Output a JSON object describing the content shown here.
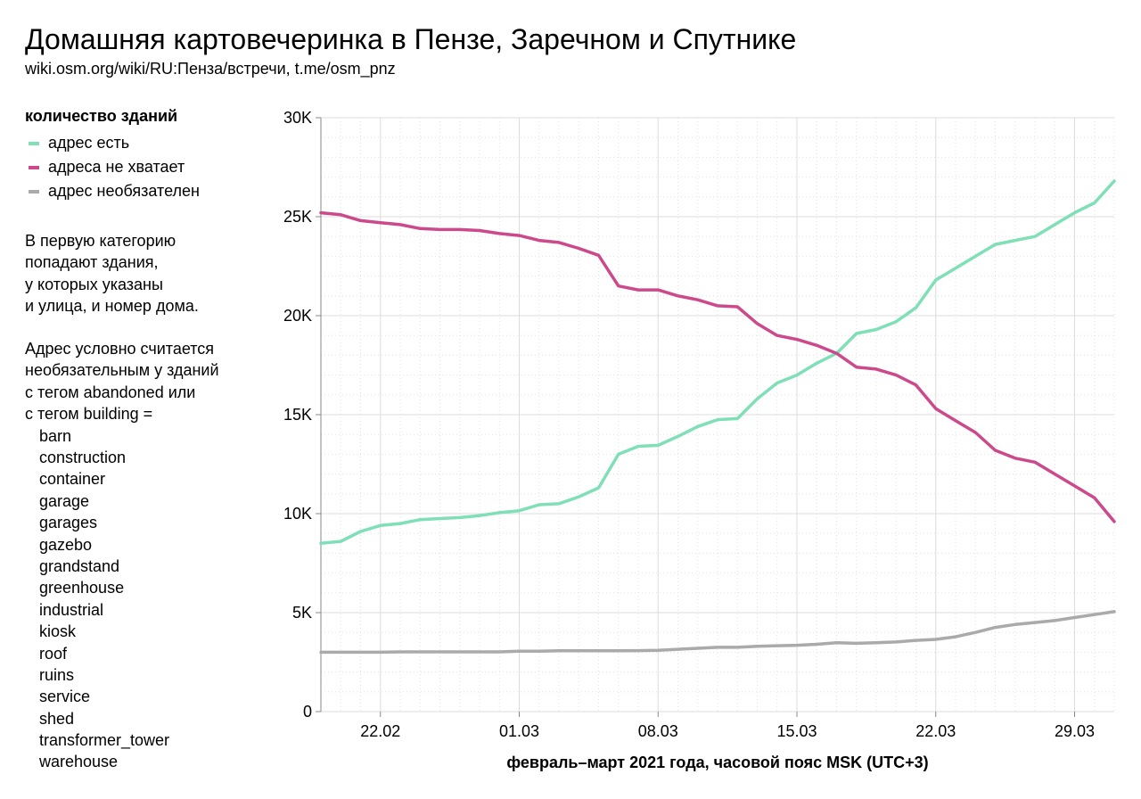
{
  "header": {
    "title": "Домашняя картовечеринка в Пензе, Заречном и Спутнике",
    "subtitle": "wiki.osm.org/wiki/RU:Пенза/встречи, t.me/osm_pnz"
  },
  "legend": {
    "title": "количество зданий",
    "items": [
      {
        "label": "адрес есть",
        "color": "#7fdfb7"
      },
      {
        "label": "адреса не хватает",
        "color": "#cc4a8b"
      },
      {
        "label": "адрес необязателен",
        "color": "#aaaaaa"
      }
    ]
  },
  "notes": {
    "para1": [
      "В первую категорию",
      "попадают здания,",
      "у которых указаны",
      "и улица, и номер дома."
    ],
    "para2": [
      "Адрес условно считается",
      "необязательным у зданий",
      "с тегом abandoned или",
      "с тегом building ="
    ],
    "tags": [
      "barn",
      "construction",
      "container",
      "garage",
      "garages",
      "gazebo",
      "grandstand",
      "greenhouse",
      "industrial",
      "kiosk",
      "roof",
      "ruins",
      "service",
      "shed",
      "transformer_tower",
      "warehouse"
    ]
  },
  "chart_data": {
    "type": "line",
    "xlabel": "февраль–март 2021 года, часовой пояс MSK (UTC+3)",
    "x_ticks": [
      "22.02",
      "01.03",
      "08.03",
      "15.03",
      "22.03",
      "29.03"
    ],
    "y_ticks": [
      "0",
      "5K",
      "10K",
      "15K",
      "20K",
      "25K",
      "30K"
    ],
    "ylim": [
      0,
      30000
    ],
    "xlim": [
      "19.02",
      "31.03"
    ],
    "grid": true,
    "series": [
      {
        "name": "адрес есть",
        "color": "#7fdfb7",
        "x": [
          "19.02",
          "20.02",
          "21.02",
          "22.02",
          "23.02",
          "24.02",
          "25.02",
          "26.02",
          "27.02",
          "28.02",
          "01.03",
          "02.03",
          "03.03",
          "04.03",
          "05.03",
          "06.03",
          "07.03",
          "08.03",
          "09.03",
          "10.03",
          "11.03",
          "12.03",
          "13.03",
          "14.03",
          "15.03",
          "16.03",
          "17.03",
          "18.03",
          "19.03",
          "20.03",
          "21.03",
          "22.03",
          "23.03",
          "24.03",
          "25.03",
          "26.03",
          "27.03",
          "28.03",
          "29.03",
          "30.03",
          "31.03"
        ],
        "values": [
          8500,
          8600,
          9100,
          9400,
          9500,
          9700,
          9750,
          9800,
          9900,
          10050,
          10150,
          10450,
          10500,
          10850,
          11300,
          13000,
          13400,
          13450,
          13900,
          14400,
          14750,
          14800,
          15800,
          16600,
          17000,
          17600,
          18100,
          19100,
          19300,
          19700,
          20400,
          21800,
          22400,
          23000,
          23600,
          23800,
          24000,
          24600,
          25200,
          25700,
          26800
        ]
      },
      {
        "name": "адреса не хватает",
        "color": "#cc4a8b",
        "x": [
          "19.02",
          "20.02",
          "21.02",
          "22.02",
          "23.02",
          "24.02",
          "25.02",
          "26.02",
          "27.02",
          "28.02",
          "01.03",
          "02.03",
          "03.03",
          "04.03",
          "05.03",
          "06.03",
          "07.03",
          "08.03",
          "09.03",
          "10.03",
          "11.03",
          "12.03",
          "13.03",
          "14.03",
          "15.03",
          "16.03",
          "17.03",
          "18.03",
          "19.03",
          "20.03",
          "21.03",
          "22.03",
          "23.03",
          "24.03",
          "25.03",
          "26.03",
          "27.03",
          "28.03",
          "29.03",
          "30.03",
          "31.03"
        ],
        "values": [
          25200,
          25100,
          24800,
          24700,
          24600,
          24400,
          24350,
          24350,
          24300,
          24150,
          24050,
          23800,
          23700,
          23400,
          23050,
          21500,
          21300,
          21300,
          21000,
          20800,
          20500,
          20450,
          19600,
          19000,
          18800,
          18500,
          18100,
          17400,
          17300,
          17000,
          16500,
          15300,
          14700,
          14100,
          13200,
          12800,
          12600,
          12000,
          11400,
          10800,
          9600
        ]
      },
      {
        "name": "адрес необязателен",
        "color": "#aaaaaa",
        "x": [
          "19.02",
          "20.02",
          "21.02",
          "22.02",
          "23.02",
          "24.02",
          "25.02",
          "26.02",
          "27.02",
          "28.02",
          "01.03",
          "02.03",
          "03.03",
          "04.03",
          "05.03",
          "06.03",
          "07.03",
          "08.03",
          "09.03",
          "10.03",
          "11.03",
          "12.03",
          "13.03",
          "14.03",
          "15.03",
          "16.03",
          "17.03",
          "18.03",
          "19.03",
          "20.03",
          "21.03",
          "22.03",
          "23.03",
          "24.03",
          "25.03",
          "26.03",
          "27.03",
          "28.03",
          "29.03",
          "30.03",
          "31.03"
        ],
        "values": [
          3000,
          3000,
          3000,
          3000,
          3020,
          3020,
          3020,
          3020,
          3020,
          3020,
          3050,
          3050,
          3070,
          3070,
          3070,
          3070,
          3080,
          3100,
          3150,
          3200,
          3250,
          3250,
          3300,
          3330,
          3350,
          3400,
          3480,
          3450,
          3480,
          3520,
          3600,
          3650,
          3780,
          4000,
          4250,
          4400,
          4500,
          4600,
          4750,
          4900,
          5050
        ]
      }
    ]
  }
}
